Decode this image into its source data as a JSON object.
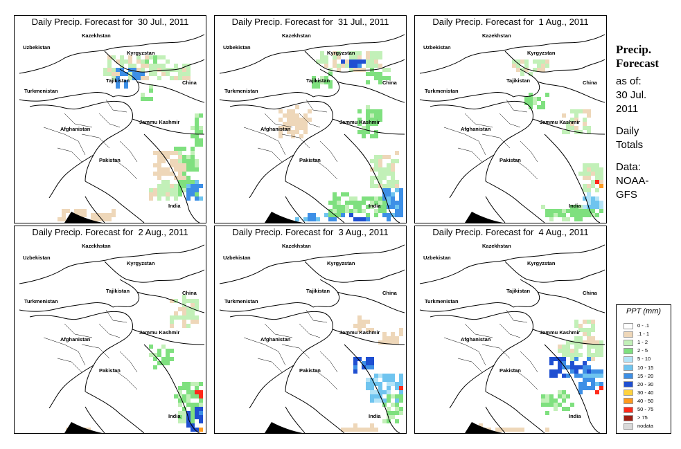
{
  "panels": [
    {
      "title": "Daily Precip. Forecast for  30 Jul., 2011"
    },
    {
      "title": "Daily Precip. Forecast for  31 Jul., 2011"
    },
    {
      "title": "Daily Precip. Forecast for  1 Aug., 2011"
    },
    {
      "title": "Daily Precip. Forecast for  2 Aug., 2011"
    },
    {
      "title": "Daily Precip. Forecast for  3 Aug., 2011"
    },
    {
      "title": "Daily Precip. Forecast for  4 Aug., 2011"
    }
  ],
  "map_labels": {
    "kazakhstan": "Kazekhstan",
    "uzbekistan": "Uzbekistan",
    "kyrgyzstan": "Kyrgyzstan",
    "tajikistan": "Tajikistan",
    "turkmenistan": "Turkmenistan",
    "china": "China",
    "afghanistan": "Afghanistan",
    "jammu_kashmir": "Jammu Kashmir",
    "pakistan": "Pakistan",
    "india": "India"
  },
  "sidebar": {
    "heading_line1": "Precip.",
    "heading_line2": "Forecast",
    "asof_line1": "as of:",
    "asof_line2": "30 Jul.",
    "asof_line3": "2011",
    "totals_line1": "Daily",
    "totals_line2": "Totals",
    "data_line1": "Data:",
    "data_line2": "NOAA-",
    "data_line3": "GFS"
  },
  "legend": {
    "title": "PPT (mm)",
    "items": [
      {
        "label": "0 - .1",
        "color": "#ffffff"
      },
      {
        "label": ".1 - 1",
        "color": "#eed7b9"
      },
      {
        "label": "1 - 2",
        "color": "#c2f0b8"
      },
      {
        "label": "2 - 5",
        "color": "#7fe07f"
      },
      {
        "label": "5 - 10",
        "color": "#b3e3f7"
      },
      {
        "label": "10 - 15",
        "color": "#6fc4ef"
      },
      {
        "label": "15 - 20",
        "color": "#3d8fe6"
      },
      {
        "label": "20 - 30",
        "color": "#1f4fd1"
      },
      {
        "label": "30 - 40",
        "color": "#ffd23f"
      },
      {
        "label": "40 - 50",
        "color": "#ff9a1f"
      },
      {
        "label": "50 - 75",
        "color": "#ff2a1a"
      },
      {
        "label": "> 75",
        "color": "#9e1f14"
      },
      {
        "label": "nodata",
        "color": "#d9d9d9"
      }
    ]
  }
}
